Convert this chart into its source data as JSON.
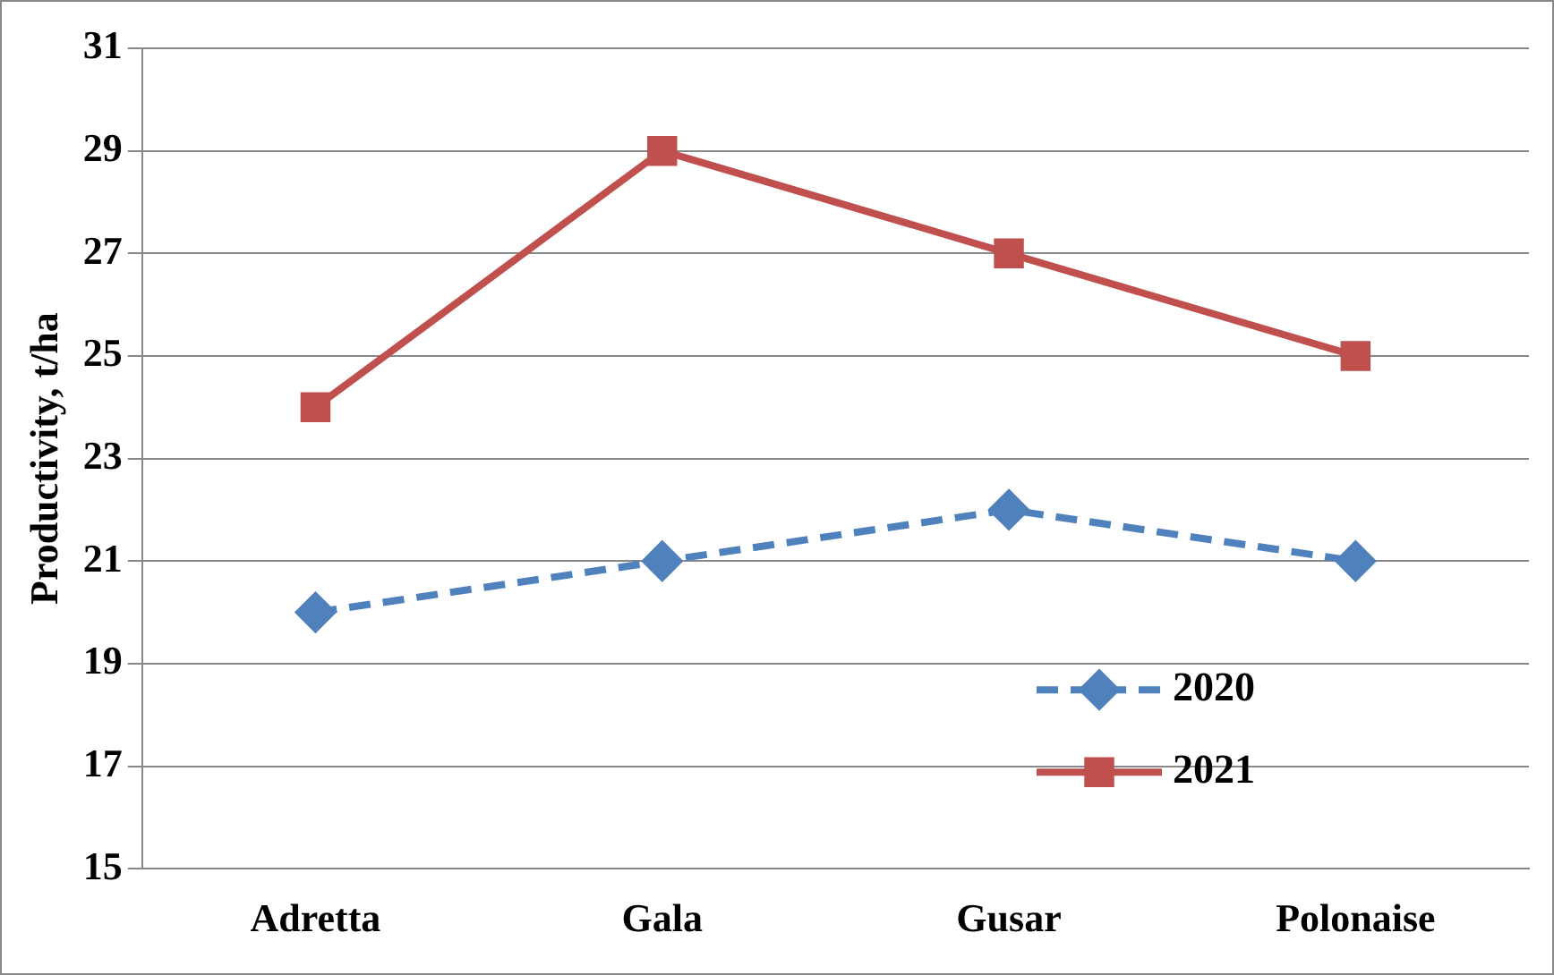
{
  "chart_data": {
    "type": "line",
    "ylabel": "Productivity, t/ha",
    "categories": [
      "Adretta",
      "Gala",
      "Gusar",
      "Polonaise"
    ],
    "series": [
      {
        "name": "2020",
        "color": "#4f81bd",
        "values": [
          20,
          21,
          22,
          21
        ],
        "marker": "diamond",
        "line_style": "dashed"
      },
      {
        "name": "2021",
        "color": "#c0504d",
        "values": [
          24,
          29,
          27,
          25
        ],
        "marker": "square",
        "line_style": "solid"
      }
    ],
    "ylim": [
      15,
      31
    ],
    "yticks": [
      15,
      17,
      19,
      21,
      23,
      25,
      27,
      29,
      31
    ],
    "grid": "y",
    "legend": "bottom right"
  }
}
